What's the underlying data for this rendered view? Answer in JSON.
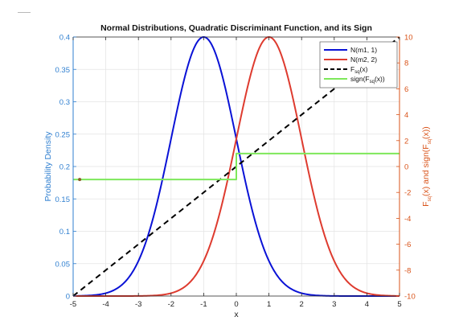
{
  "chart_data": {
    "type": "line",
    "title": "Normal Distributions, Quadratic Discriminant Function, and its Sign",
    "xlabel": "x",
    "ylabel_left": "Probability Density",
    "ylabel_right": {
      "main": "F",
      "sub": "sq",
      "rest": "(x)  and  sign(F",
      "sub2": "sq",
      "end": "(x))"
    },
    "xlim": [
      -5,
      5
    ],
    "ylim_left": [
      0,
      0.4
    ],
    "ylim_right": [
      -10,
      10
    ],
    "x_ticks": [
      "-5",
      "-4",
      "-3",
      "-2",
      "-1",
      "0",
      "1",
      "2",
      "3",
      "4",
      "5"
    ],
    "y_left_ticks": [
      "0",
      "0.05",
      "0.1",
      "0.15",
      "0.2",
      "0.25",
      "0.3",
      "0.35",
      "0.4"
    ],
    "y_right_ticks": [
      "-10",
      "-8",
      "-6",
      "-4",
      "-2",
      "0",
      "2",
      "4",
      "6",
      "8",
      "10"
    ],
    "grid": true,
    "legend_position": "top-right",
    "colors": {
      "left_axis": "#2f7fd0",
      "right_axis": "#d95319",
      "blue": "#0a12d6",
      "red": "#de3b2f",
      "black": "#000000",
      "green": "#7ee85b"
    },
    "series": [
      {
        "name": "N(m1, 1)",
        "axis": "left",
        "style": "solid",
        "color": "#0a12d6",
        "mean": -1,
        "variance": 1,
        "peak": 0.4,
        "x": [
          -5,
          -4,
          -3,
          -2.5,
          -2,
          -1.5,
          -1,
          -0.5,
          0,
          0.5,
          1,
          2,
          3,
          4,
          5
        ],
        "y": [
          0.0001,
          0.0044,
          0.054,
          0.1295,
          0.242,
          0.352,
          0.4,
          0.352,
          0.242,
          0.1295,
          0.054,
          0.0044,
          0.0001,
          0,
          0
        ]
      },
      {
        "name": "N(m2, 2)",
        "axis": "left",
        "style": "solid",
        "color": "#de3b2f",
        "mean": 1,
        "variance": 1,
        "peak": 0.4,
        "x": [
          -5,
          -4,
          -3,
          -2,
          -1,
          0,
          0.5,
          1,
          1.5,
          2,
          2.5,
          3,
          4,
          5
        ],
        "y": [
          0,
          0,
          0.0001,
          0.0044,
          0.054,
          0.242,
          0.352,
          0.4,
          0.352,
          0.242,
          0.1295,
          0.054,
          0.0044,
          0.0001
        ]
      },
      {
        "name": "F",
        "name_sub": "sq",
        "name_end": "(x)",
        "axis": "right",
        "style": "dashed",
        "color": "#000000",
        "x": [
          -5,
          5
        ],
        "y": [
          -10,
          10
        ]
      },
      {
        "name": "sign(F",
        "name_sub": "sq",
        "name_end": "(x))",
        "axis": "right",
        "style": "solid",
        "color": "#7ee85b",
        "x": [
          -5,
          0,
          0,
          5
        ],
        "y": [
          -1,
          -1,
          1,
          1
        ]
      }
    ]
  }
}
